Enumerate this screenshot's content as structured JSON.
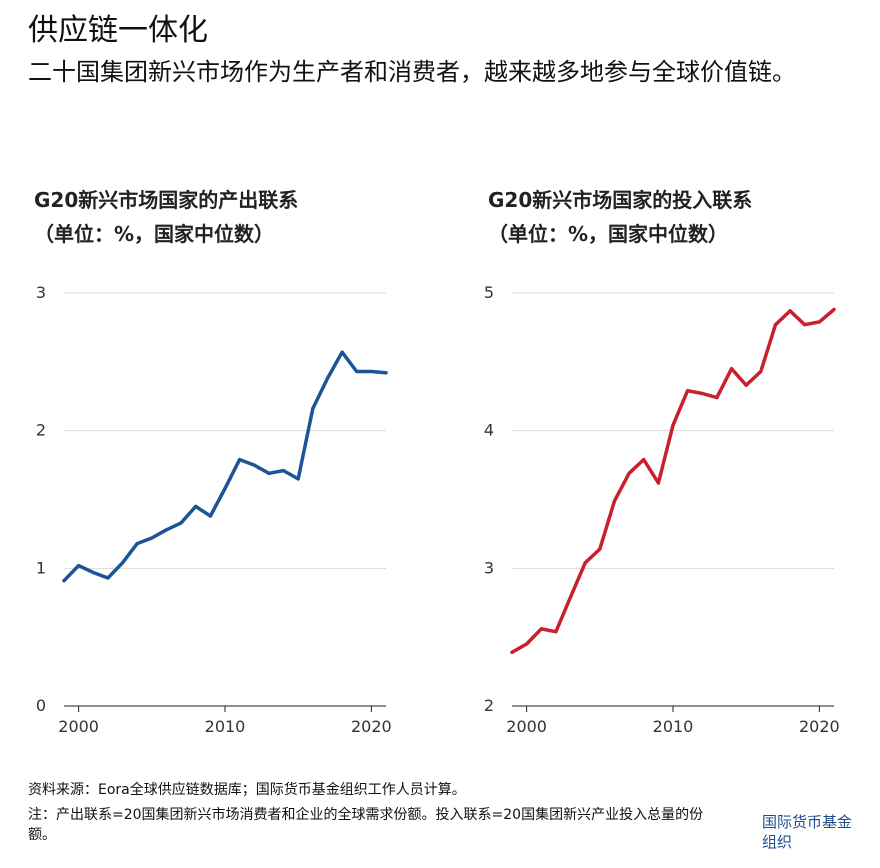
{
  "title": "供应链一体化",
  "subtitle": "二十国集团新兴市场作为生产者和消费者，越来越多地参与全球价值链。",
  "chart_data": [
    {
      "type": "line",
      "title": "G20新兴市场国家的产出联系",
      "unit": "（单位：%，国家中位数）",
      "color": "#1c5595",
      "ylim": [
        0,
        3
      ],
      "yticks": [
        0,
        1,
        2,
        3
      ],
      "xlim": [
        1999,
        2021
      ],
      "xticks": [
        2000,
        2010,
        2020
      ],
      "grid": true,
      "x": [
        1999,
        2000,
        2001,
        2002,
        2003,
        2004,
        2005,
        2006,
        2007,
        2008,
        2009,
        2010,
        2011,
        2012,
        2013,
        2014,
        2015,
        2016,
        2017,
        2018,
        2019,
        2020,
        2021
      ],
      "values": [
        0.91,
        1.02,
        0.97,
        0.93,
        1.04,
        1.18,
        1.22,
        1.28,
        1.33,
        1.45,
        1.38,
        1.58,
        1.79,
        1.75,
        1.69,
        1.71,
        1.65,
        2.16,
        2.38,
        2.57,
        2.43,
        2.43,
        2.42
      ]
    },
    {
      "type": "line",
      "title": "G20新兴市场国家的投入联系",
      "unit": "（单位：%，国家中位数）",
      "color": "#c8202c",
      "ylim": [
        2,
        5
      ],
      "yticks": [
        2,
        3,
        4,
        5
      ],
      "xlim": [
        1999,
        2021
      ],
      "xticks": [
        2000,
        2010,
        2020
      ],
      "grid": true,
      "x": [
        1999,
        2000,
        2001,
        2002,
        2003,
        2004,
        2005,
        2006,
        2007,
        2008,
        2009,
        2010,
        2011,
        2012,
        2013,
        2014,
        2015,
        2016,
        2017,
        2018,
        2019,
        2020,
        2021
      ],
      "values": [
        2.39,
        2.45,
        2.56,
        2.54,
        2.79,
        3.04,
        3.14,
        3.49,
        3.69,
        3.79,
        3.62,
        4.04,
        4.29,
        4.27,
        4.24,
        4.45,
        4.33,
        4.43,
        4.77,
        4.87,
        4.77,
        4.79,
        4.88
      ]
    }
  ],
  "footer": {
    "source": "资料来源：Eora全球供应链数据库；国际货币基金组织工作人员计算。",
    "note": "注：产出联系=20国集团新兴市场消费者和企业的全球需求份额。投入联系=20国集团新兴产业投入总量的份额。",
    "logo": "国际货币基金组织"
  }
}
